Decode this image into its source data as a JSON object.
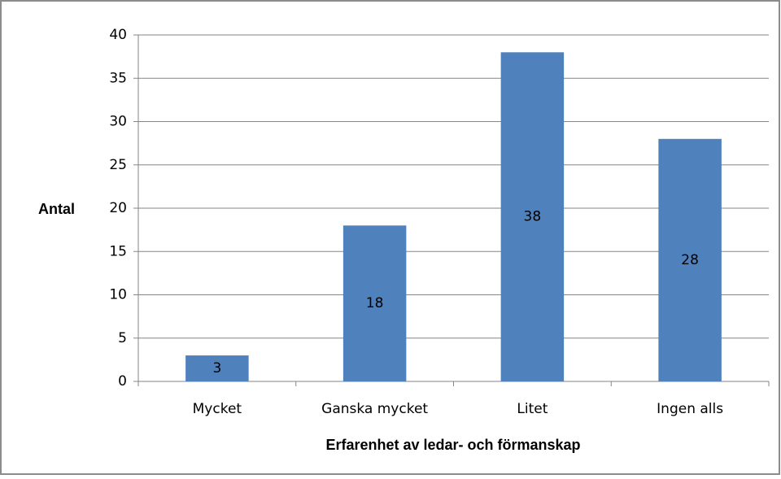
{
  "chart_data": {
    "type": "bar",
    "categories": [
      "Mycket",
      "Ganska mycket",
      "Litet",
      "Ingen alls"
    ],
    "values": [
      3,
      18,
      38,
      28
    ],
    "color": "#4f81bd",
    "x_label": "Erfarenhet av ledar- och förmanskap",
    "y_label": "Antal",
    "ylim": [
      0,
      40
    ],
    "yticks": [
      0,
      5,
      10,
      15,
      20,
      25,
      30,
      35,
      40
    ],
    "grid": true
  }
}
